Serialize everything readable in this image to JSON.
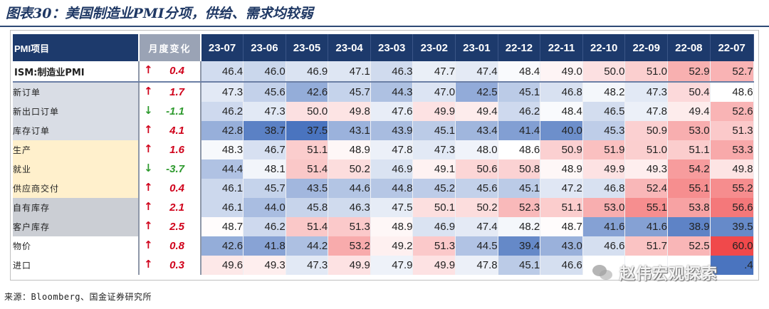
{
  "title": "图表30：美国制造业PMI分项，供给、需求均较弱",
  "header": {
    "item_label": "PMI项目",
    "change_label": "月度变化",
    "months": [
      "23-07",
      "23-06",
      "23-05",
      "23-04",
      "23-03",
      "23-02",
      "23-01",
      "22-12",
      "22-11",
      "22-10",
      "22-09",
      "22-08",
      "22-07"
    ]
  },
  "rows": [
    {
      "name": "ISM:制造业PMI",
      "group": "main",
      "dir": "up",
      "change": "0.4",
      "values": [
        "46.4",
        "46.0",
        "46.9",
        "47.1",
        "46.3",
        "47.7",
        "47.4",
        "48.4",
        "49.0",
        "50.0",
        "51.0",
        "52.9",
        "52.7"
      ]
    },
    {
      "name": "新订单",
      "group": "new",
      "dir": "up",
      "change": "1.7",
      "values": [
        "47.3",
        "45.6",
        "42.6",
        "45.7",
        "44.3",
        "47.0",
        "42.5",
        "45.1",
        "46.8",
        "48.2",
        "47.3",
        "50.4",
        "48.6"
      ]
    },
    {
      "name": "新出口订单",
      "group": "new",
      "dir": "down",
      "change": "-1.1",
      "values": [
        "46.2",
        "47.3",
        "50.0",
        "49.8",
        "47.6",
        "49.9",
        "49.4",
        "46.2",
        "48.4",
        "46.5",
        "47.8",
        "49.4",
        "52.6"
      ]
    },
    {
      "name": "库存订单",
      "group": "new",
      "dir": "up",
      "change": "4.1",
      "values": [
        "42.8",
        "38.7",
        "37.5",
        "43.1",
        "43.9",
        "45.1",
        "43.4",
        "41.4",
        "40.0",
        "45.3",
        "50.9",
        "53.0",
        "51.3"
      ]
    },
    {
      "name": "生产",
      "group": "prod",
      "dir": "up",
      "change": "1.6",
      "values": [
        "48.3",
        "46.7",
        "51.1",
        "48.9",
        "47.8",
        "47.3",
        "48.0",
        "48.6",
        "50.9",
        "51.9",
        "51.0",
        "51.1",
        "53.3"
      ]
    },
    {
      "name": "就业",
      "group": "prod",
      "dir": "down",
      "change": "-3.7",
      "values": [
        "44.4",
        "48.1",
        "51.4",
        "50.2",
        "46.9",
        "49.1",
        "50.6",
        "50.8",
        "48.9",
        "49.9",
        "49.3",
        "54.2",
        "49.8"
      ]
    },
    {
      "name": "供应商交付",
      "group": "prod",
      "dir": "up",
      "change": "0.4",
      "values": [
        "46.1",
        "45.7",
        "43.5",
        "44.6",
        "44.8",
        "45.2",
        "45.6",
        "45.1",
        "47.2",
        "46.8",
        "52.4",
        "55.1",
        "55.2"
      ]
    },
    {
      "name": "自有库存",
      "group": "inv",
      "dir": "up",
      "change": "2.1",
      "values": [
        "46.1",
        "44.0",
        "45.8",
        "46.3",
        "47.5",
        "50.1",
        "50.2",
        "52.3",
        "51.1",
        "53.0",
        "55.1",
        "53.8",
        "56.6"
      ]
    },
    {
      "name": "客户库存",
      "group": "inv",
      "dir": "up",
      "change": "2.5",
      "values": [
        "48.7",
        "46.2",
        "51.4",
        "51.3",
        "48.9",
        "46.9",
        "47.4",
        "48.2",
        "48.7",
        "41.6",
        "41.6",
        "38.9",
        "39.5"
      ]
    },
    {
      "name": "物价",
      "group": "price",
      "dir": "up",
      "change": "0.8",
      "values": [
        "42.6",
        "41.8",
        "44.2",
        "53.2",
        "49.2",
        "51.3",
        "44.5",
        "39.4",
        "43.0",
        "46.6",
        "51.7",
        "52.5",
        "60.0"
      ]
    },
    {
      "name": "进口",
      "group": "price",
      "dir": "up",
      "change": "0.3",
      "values": [
        "49.6",
        "49.3",
        "47.3",
        "49.9",
        "47.9",
        "49.9",
        "47.8",
        "45.1",
        "46.6",
        "",
        "",
        "",
        ".4"
      ]
    }
  ],
  "arrows": {
    "up": "↑",
    "down": "↓"
  },
  "colors": {
    "header_bg": "#1d3a6c",
    "up": "#d0021b",
    "down": "#2e9a2e",
    "low": "#4a74bf",
    "mid": "#ffffff",
    "high": "#f0494b"
  },
  "source": "来源：Bloomberg、国金证券研究所",
  "watermark": "赵伟宏观探索"
}
